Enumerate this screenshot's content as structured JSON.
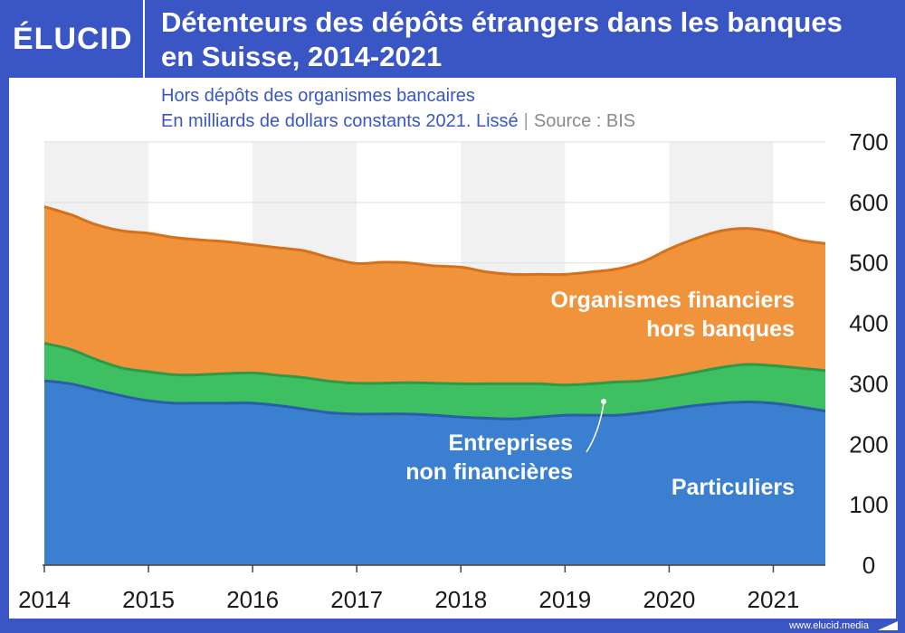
{
  "header": {
    "logo": "ÉLUCID",
    "title_line1": "Détenteurs des dépôts étrangers dans les banques",
    "title_line2": "en Suisse, 2014-2021"
  },
  "subtitle": {
    "line1": "Hors dépôts des organismes bancaires",
    "line2": "En milliards de dollars constants 2021. Lissé",
    "separator": "|",
    "source": "Source : BIS"
  },
  "footer": {
    "url": "www.elucid.media"
  },
  "colors": {
    "particuliers": "#3a7fd0",
    "entreprises": "#3dbf62",
    "organismes": "#f0933a",
    "organismes_line": "#d5701d",
    "entreprises_line": "#2e9a48",
    "particuliers_line": "#2a5fa8",
    "brand": "#3a56c5"
  },
  "chart_data": {
    "type": "area",
    "stacked": true,
    "x": [
      2014.0,
      2014.25,
      2014.5,
      2014.75,
      2015.0,
      2015.25,
      2015.5,
      2015.75,
      2016.0,
      2016.25,
      2016.5,
      2016.75,
      2017.0,
      2017.25,
      2017.5,
      2017.75,
      2018.0,
      2018.25,
      2018.5,
      2018.75,
      2019.0,
      2019.25,
      2019.5,
      2019.75,
      2020.0,
      2020.25,
      2020.5,
      2020.75,
      2021.0,
      2021.25,
      2021.5
    ],
    "series": [
      {
        "name": "Particuliers",
        "values": [
          305,
          300,
          290,
          280,
          272,
          268,
          268,
          268,
          268,
          264,
          258,
          252,
          250,
          250,
          250,
          248,
          245,
          243,
          242,
          245,
          248,
          248,
          248,
          252,
          258,
          264,
          268,
          270,
          268,
          262,
          255
        ]
      },
      {
        "name": "Entreprises non financières",
        "values": [
          62,
          57,
          50,
          46,
          48,
          47,
          47,
          49,
          50,
          50,
          52,
          52,
          51,
          51,
          52,
          53,
          55,
          57,
          58,
          55,
          50,
          52,
          55,
          53,
          53,
          55,
          59,
          62,
          62,
          64,
          67
        ]
      },
      {
        "name": "Organismes financiers hors banques",
        "values": [
          226,
          223,
          223,
          227,
          229,
          227,
          223,
          218,
          212,
          211,
          210,
          204,
          198,
          200,
          198,
          194,
          193,
          185,
          181,
          181,
          183,
          185,
          187,
          197,
          212,
          221,
          226,
          225,
          221,
          212,
          210
        ]
      }
    ],
    "labels": {
      "organismes_line1": "Organismes financiers",
      "organismes_line2": "hors banques",
      "entreprises_line1": "Entreprises",
      "entreprises_line2": "non financières",
      "particuliers": "Particuliers"
    },
    "ylim": [
      0,
      700
    ],
    "yticks": [
      0,
      100,
      200,
      300,
      400,
      500,
      600,
      700
    ],
    "xlim": [
      2014,
      2021.5
    ],
    "xticks": [
      2014,
      2015,
      2016,
      2017,
      2018,
      2019,
      2020,
      2021
    ],
    "shaded_years": [
      2014,
      2016,
      2018,
      2020
    ],
    "xlabel": "",
    "ylabel": ""
  }
}
